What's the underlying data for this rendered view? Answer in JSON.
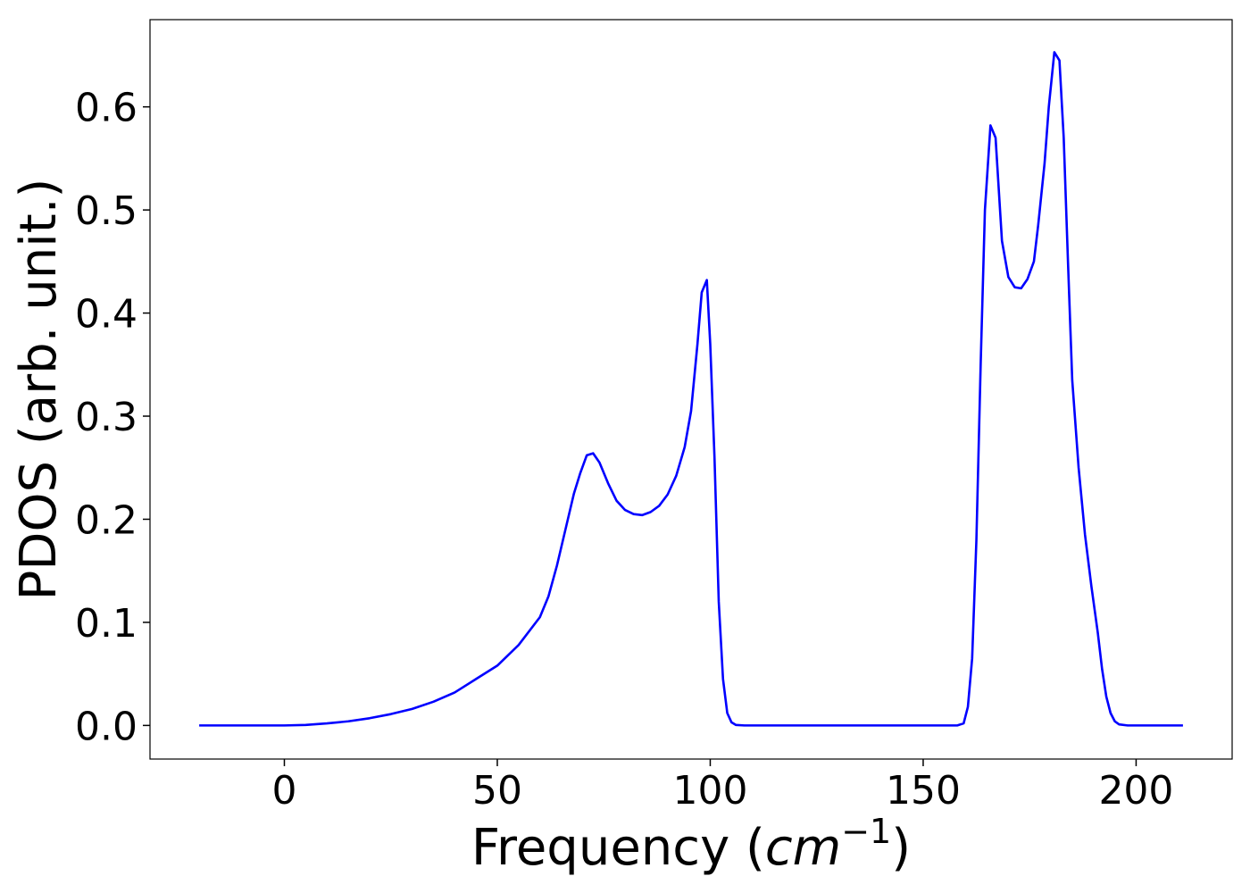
{
  "chart_data": {
    "type": "line",
    "x_label": [
      "Frequency (",
      "cm",
      "−1",
      ")"
    ],
    "y_label": "PDOS (arb. unit.)",
    "x": [
      -20,
      0,
      5,
      10,
      15,
      20,
      25,
      30,
      35,
      40,
      45,
      50,
      55,
      60,
      62,
      64,
      66,
      68,
      69.5,
      71,
      72.5,
      74,
      76,
      78,
      80,
      82,
      84,
      86,
      88,
      90,
      92,
      94,
      95.5,
      97,
      98,
      99.2,
      100,
      101,
      102,
      103,
      104,
      105,
      106,
      108,
      150,
      158,
      159.5,
      160.5,
      161.5,
      162.5,
      163.5,
      164.5,
      165.8,
      167,
      168.5,
      170,
      171.5,
      173,
      174.5,
      176,
      177,
      178.5,
      179.5,
      180.8,
      182,
      183,
      184,
      185,
      186.5,
      188,
      189.5,
      191,
      192,
      193,
      194,
      195,
      196,
      198,
      211
    ],
    "series": [
      {
        "color": "#0000ff",
        "values": [
          0,
          0,
          0.0005,
          0.002,
          0.004,
          0.007,
          0.011,
          0.016,
          0.023,
          0.032,
          0.045,
          0.058,
          0.078,
          0.105,
          0.125,
          0.155,
          0.19,
          0.225,
          0.245,
          0.262,
          0.264,
          0.255,
          0.235,
          0.218,
          0.209,
          0.205,
          0.204,
          0.207,
          0.213,
          0.224,
          0.242,
          0.27,
          0.305,
          0.37,
          0.42,
          0.432,
          0.37,
          0.26,
          0.12,
          0.045,
          0.012,
          0.003,
          0.0005,
          0,
          0,
          0,
          0.002,
          0.018,
          0.065,
          0.18,
          0.35,
          0.5,
          0.582,
          0.57,
          0.47,
          0.435,
          0.425,
          0.424,
          0.433,
          0.45,
          0.485,
          0.545,
          0.6,
          0.653,
          0.645,
          0.57,
          0.45,
          0.335,
          0.25,
          0.185,
          0.135,
          0.09,
          0.055,
          0.028,
          0.012,
          0.004,
          0.001,
          0,
          0
        ]
      }
    ],
    "xlim": [
      -31.55,
      222.55
    ],
    "xticks": [
      0,
      50,
      100,
      150,
      200
    ],
    "ylim": [
      -0.0326,
      0.6846
    ],
    "yticks": [
      {
        "value": 0,
        "label": "0.0"
      },
      0.1,
      0.2,
      0.3,
      0.4,
      0.5,
      0.6
    ],
    "grid": false
  }
}
